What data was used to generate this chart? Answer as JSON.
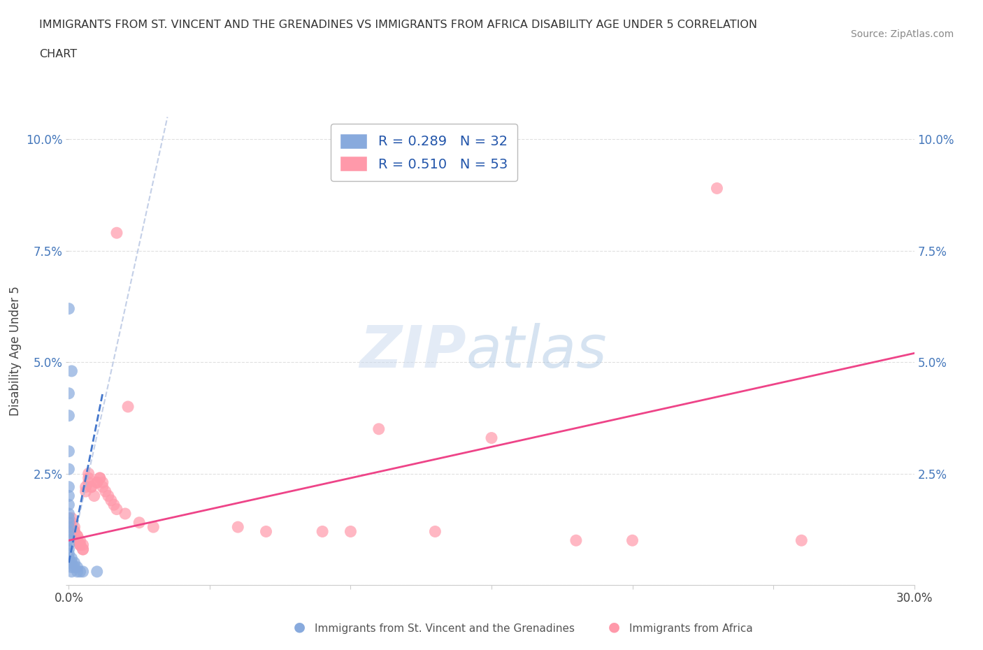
{
  "title_line1": "IMMIGRANTS FROM ST. VINCENT AND THE GRENADINES VS IMMIGRANTS FROM AFRICA DISABILITY AGE UNDER 5 CORRELATION",
  "title_line2": "CHART",
  "source": "Source: ZipAtlas.com",
  "ylabel": "Disability Age Under 5",
  "xlim": [
    0.0,
    0.3
  ],
  "ylim": [
    0.0,
    0.105
  ],
  "x_ticks": [
    0.0,
    0.05,
    0.1,
    0.15,
    0.2,
    0.25,
    0.3
  ],
  "x_tick_labels": [
    "0.0%",
    "",
    "",
    "",
    "",
    "",
    "30.0%"
  ],
  "y_ticks": [
    0.0,
    0.025,
    0.05,
    0.075,
    0.1
  ],
  "y_tick_labels": [
    "",
    "2.5%",
    "5.0%",
    "7.5%",
    "10.0%"
  ],
  "legend1_R": "R = 0.289",
  "legend1_N": "N = 32",
  "legend2_R": "R = 0.510",
  "legend2_N": "N = 53",
  "color_blue": "#88AADD",
  "color_pink": "#FF99AA",
  "color_line_blue": "#4477CC",
  "color_line_pink": "#EE4488",
  "watermark_zip": "ZIP",
  "watermark_atlas": "atlas",
  "bg_color": "#FFFFFF",
  "grid_color": "#DDDDDD",
  "blue_trendline_x": [
    0.0,
    0.012
  ],
  "blue_trendline_y": [
    0.005,
    0.043
  ],
  "pink_trendline_x": [
    0.0,
    0.3
  ],
  "pink_trendline_y": [
    0.01,
    0.052
  ],
  "scatter_blue": [
    [
      0.0,
      0.062
    ],
    [
      0.0,
      0.043
    ],
    [
      0.0,
      0.038
    ],
    [
      0.0,
      0.03
    ],
    [
      0.0,
      0.026
    ],
    [
      0.0,
      0.022
    ],
    [
      0.0,
      0.02
    ],
    [
      0.0,
      0.018
    ],
    [
      0.0,
      0.016
    ],
    [
      0.0,
      0.015
    ],
    [
      0.0,
      0.014
    ],
    [
      0.0,
      0.013
    ],
    [
      0.0,
      0.012
    ],
    [
      0.0,
      0.011
    ],
    [
      0.0,
      0.01
    ],
    [
      0.0,
      0.009
    ],
    [
      0.0,
      0.008
    ],
    [
      0.0,
      0.007
    ],
    [
      0.0,
      0.006
    ],
    [
      0.0,
      0.005
    ],
    [
      0.001,
      0.048
    ],
    [
      0.001,
      0.006
    ],
    [
      0.001,
      0.005
    ],
    [
      0.001,
      0.004
    ],
    [
      0.001,
      0.003
    ],
    [
      0.002,
      0.005
    ],
    [
      0.002,
      0.004
    ],
    [
      0.003,
      0.004
    ],
    [
      0.003,
      0.003
    ],
    [
      0.004,
      0.003
    ],
    [
      0.005,
      0.003
    ],
    [
      0.01,
      0.003
    ]
  ],
  "scatter_pink": [
    [
      0.001,
      0.015
    ],
    [
      0.001,
      0.014
    ],
    [
      0.001,
      0.013
    ],
    [
      0.002,
      0.013
    ],
    [
      0.002,
      0.012
    ],
    [
      0.002,
      0.012
    ],
    [
      0.002,
      0.011
    ],
    [
      0.003,
      0.011
    ],
    [
      0.003,
      0.011
    ],
    [
      0.003,
      0.01
    ],
    [
      0.003,
      0.01
    ],
    [
      0.004,
      0.01
    ],
    [
      0.004,
      0.009
    ],
    [
      0.004,
      0.009
    ],
    [
      0.004,
      0.009
    ],
    [
      0.005,
      0.009
    ],
    [
      0.005,
      0.008
    ],
    [
      0.005,
      0.008
    ],
    [
      0.006,
      0.022
    ],
    [
      0.006,
      0.021
    ],
    [
      0.007,
      0.025
    ],
    [
      0.007,
      0.024
    ],
    [
      0.007,
      0.023
    ],
    [
      0.008,
      0.022
    ],
    [
      0.008,
      0.022
    ],
    [
      0.009,
      0.02
    ],
    [
      0.01,
      0.023
    ],
    [
      0.01,
      0.023
    ],
    [
      0.011,
      0.024
    ],
    [
      0.011,
      0.024
    ],
    [
      0.012,
      0.023
    ],
    [
      0.012,
      0.022
    ],
    [
      0.013,
      0.021
    ],
    [
      0.014,
      0.02
    ],
    [
      0.015,
      0.019
    ],
    [
      0.016,
      0.018
    ],
    [
      0.017,
      0.017
    ],
    [
      0.017,
      0.079
    ],
    [
      0.02,
      0.016
    ],
    [
      0.021,
      0.04
    ],
    [
      0.025,
      0.014
    ],
    [
      0.03,
      0.013
    ],
    [
      0.06,
      0.013
    ],
    [
      0.07,
      0.012
    ],
    [
      0.09,
      0.012
    ],
    [
      0.1,
      0.012
    ],
    [
      0.11,
      0.035
    ],
    [
      0.13,
      0.012
    ],
    [
      0.15,
      0.033
    ],
    [
      0.18,
      0.01
    ],
    [
      0.2,
      0.01
    ],
    [
      0.23,
      0.089
    ],
    [
      0.26,
      0.01
    ]
  ]
}
